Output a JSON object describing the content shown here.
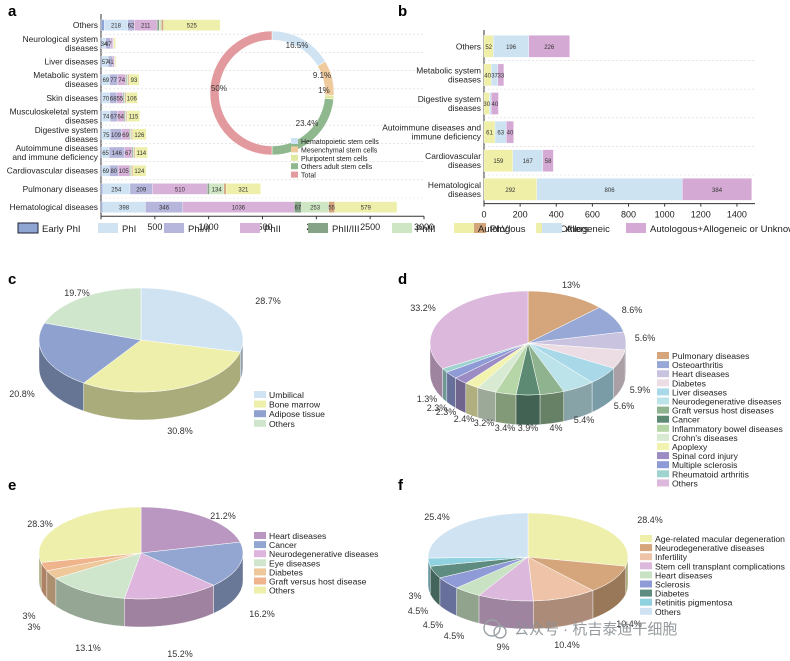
{
  "colors": {
    "early_phi": "#8fa6d2",
    "phi": "#cfe3f3",
    "phi_ii": "#b6b6dc",
    "phii": "#d8b1d9",
    "phii_iii": "#86a388",
    "phiii": "#cfe6c4",
    "phvi": "#d4a47b",
    "others": "#eeefab",
    "autologous": "#efefa8",
    "allogeneic": "#cde3f2",
    "auto_allo": "#d4aad5"
  },
  "panel_a": {
    "letter": "a",
    "xticks": [
      "0",
      "500",
      "1000",
      "1500",
      "2000",
      "2500",
      "3000"
    ],
    "xmax": 3000,
    "categories": [
      "Others",
      "Neurological system diseases",
      "Liver diseases",
      "Metabolic system diseases",
      "Skin diseases",
      "Musculoskeletal system diseases",
      "Digestive system diseases",
      "Autoimmune diseases and immune deficiency",
      "Cardiovascular diseases",
      "Pulmonary diseases",
      "Hematological diseases"
    ],
    "category_lines": [
      [
        "Others"
      ],
      [
        "Neurological system",
        "diseases"
      ],
      [
        "Liver diseases"
      ],
      [
        "Metabolic system",
        "diseases"
      ],
      [
        "Skin diseases"
      ],
      [
        "Musculoskeletal system",
        "diseases"
      ],
      [
        "Digestive system",
        "diseases"
      ],
      [
        "Autoimmune diseases",
        "and immune deficiency"
      ],
      [
        "Cardiovascular diseases"
      ],
      [
        "Pulmonary diseases"
      ],
      [
        "Hematological diseases"
      ]
    ],
    "series": [
      {
        "key": "early_phi",
        "values": [
          30,
          10,
          10,
          10,
          10,
          10,
          10,
          10,
          10,
          15,
          15
        ]
      },
      {
        "key": "phi",
        "values": [
          218,
          34,
          57,
          69,
          70,
          74,
          75,
          65,
          69,
          254,
          398
        ]
      },
      {
        "key": "phi_ii",
        "values": [
          62,
          47,
          41,
          77,
          68,
          67,
          109,
          146,
          80,
          209,
          346
        ]
      },
      {
        "key": "phii",
        "values": [
          211,
          20,
          15,
          74,
          55,
          64,
          69,
          67,
          105,
          510,
          1036
        ]
      },
      {
        "key": "phii_iii",
        "values": [
          20,
          3,
          3,
          10,
          10,
          10,
          10,
          10,
          10,
          20,
          67
        ]
      },
      {
        "key": "phiii",
        "values": [
          20,
          3,
          3,
          10,
          10,
          10,
          10,
          10,
          10,
          134,
          253
        ]
      },
      {
        "key": "phvi",
        "values": [
          20,
          3,
          3,
          10,
          10,
          10,
          10,
          10,
          10,
          20,
          55
        ]
      },
      {
        "key": "others",
        "values": [
          525,
          15,
          10,
          93,
          106,
          115,
          126,
          114,
          124,
          321,
          579
        ]
      }
    ],
    "bar_labels": [
      [
        "218",
        "62",
        "211",
        "525"
      ],
      [
        "34",
        "47"
      ],
      [
        "57",
        "41"
      ],
      [
        "69",
        "77",
        "74",
        "93"
      ],
      [
        "70",
        "68",
        "55",
        "106"
      ],
      [
        "74",
        "67",
        "64",
        "115"
      ],
      [
        "75",
        "109",
        "69",
        "126"
      ],
      [
        "65",
        "146",
        "67",
        "114"
      ],
      [
        "69",
        "80",
        "105",
        "124"
      ],
      [
        "254",
        "209",
        "510",
        "134",
        "321"
      ],
      [
        "398",
        "346",
        "1036",
        "67",
        "253",
        "55",
        "579"
      ]
    ],
    "donut": {
      "slices": [
        {
          "name": "Hematopoietic stem cells",
          "value": 16.5,
          "color": "#cfe3f3",
          "label": "16.5%"
        },
        {
          "name": "Mesenchymal stem cells",
          "value": 9.1,
          "color": "#eeca9c",
          "label": "9.1%"
        },
        {
          "name": "Pluripotent stem cells",
          "value": 1,
          "color": "#dfeaa0",
          "label": "1%"
        },
        {
          "name": "Others adult stem cells",
          "value": 23.4,
          "color": "#8fb88f",
          "label": "23.4%"
        },
        {
          "name": "Total",
          "value": 50,
          "color": "#e39a9e",
          "label": "50%"
        }
      ]
    }
  },
  "legend_a": [
    {
      "key": "early_phi",
      "label": "Early PhI"
    },
    {
      "key": "phi",
      "label": "PhI"
    },
    {
      "key": "phi_ii",
      "label": "PhI/II"
    },
    {
      "key": "phii",
      "label": "PhII"
    },
    {
      "key": "phii_iii",
      "label": "PhII/III"
    },
    {
      "key": "phiii",
      "label": "PhIII"
    },
    {
      "key": "phvi",
      "label": "PhVI"
    },
    {
      "key": "others",
      "label": "Others"
    }
  ],
  "panel_b": {
    "letter": "b",
    "xticks": [
      "0",
      "200",
      "400",
      "600",
      "800",
      "1000",
      "1200",
      "1400"
    ],
    "xmax": 1500,
    "categories": [
      "Others",
      "Metabolic system diseases",
      "Digestive system diseases",
      "Autoimmune diseases and immune deficiency",
      "Cardiovascular diseases",
      "Hematological diseases"
    ],
    "category_lines": [
      [
        "Others"
      ],
      [
        "Metabolic system",
        "diseases"
      ],
      [
        "Digestive system",
        "diseases"
      ],
      [
        "Autoimmune diseases and",
        "immune deficiency"
      ],
      [
        "Cardiovascular",
        "diseases"
      ],
      [
        "Hematological",
        "diseases"
      ]
    ],
    "series": [
      {
        "key": "autologous",
        "values": [
          52,
          40,
          30,
          61,
          159,
          292
        ]
      },
      {
        "key": "allogeneic",
        "values": [
          196,
          37,
          10,
          63,
          167,
          806
        ]
      },
      {
        "key": "auto_allo",
        "values": [
          226,
          33,
          40,
          40,
          58,
          384
        ]
      }
    ],
    "bar_labels": [
      [
        "52",
        "196",
        "226"
      ],
      [
        "40",
        "37",
        "33"
      ],
      [
        "30",
        "40"
      ],
      [
        "61",
        "63",
        "40"
      ],
      [
        "159",
        "167",
        "58"
      ],
      [
        "292",
        "806",
        "384"
      ]
    ]
  },
  "legend_b": [
    {
      "key": "autologous",
      "label": "Autologous"
    },
    {
      "key": "allogeneic",
      "label": "Allogeneic"
    },
    {
      "key": "auto_allo",
      "label": "Autologous+Allogeneic or Unknown"
    }
  ],
  "chart_data": [
    {
      "type": "bar",
      "orientation": "horizontal",
      "stacked": true,
      "panel": "a",
      "title": "",
      "categories": [
        "Others",
        "Neurological system diseases",
        "Liver diseases",
        "Metabolic system diseases",
        "Skin diseases",
        "Musculoskeletal system diseases",
        "Digestive system diseases",
        "Autoimmune diseases and immune deficiency",
        "Cardiovascular diseases",
        "Pulmonary diseases",
        "Hematological diseases"
      ],
      "xlim": [
        0,
        3000
      ],
      "series": [
        {
          "name": "Early PhI",
          "values": [
            30,
            10,
            10,
            10,
            10,
            10,
            10,
            10,
            10,
            15,
            15
          ]
        },
        {
          "name": "PhI",
          "values": [
            218,
            34,
            57,
            69,
            70,
            74,
            75,
            65,
            69,
            254,
            398
          ]
        },
        {
          "name": "PhI/II",
          "values": [
            62,
            47,
            41,
            77,
            68,
            67,
            109,
            146,
            80,
            209,
            346
          ]
        },
        {
          "name": "PhII",
          "values": [
            211,
            20,
            15,
            74,
            55,
            64,
            69,
            67,
            105,
            510,
            1036
          ]
        },
        {
          "name": "PhII/III",
          "values": [
            20,
            3,
            3,
            10,
            10,
            10,
            10,
            10,
            10,
            20,
            67
          ]
        },
        {
          "name": "PhIII",
          "values": [
            20,
            3,
            3,
            10,
            10,
            10,
            10,
            10,
            10,
            134,
            253
          ]
        },
        {
          "name": "PhVI",
          "values": [
            20,
            3,
            3,
            10,
            10,
            10,
            10,
            10,
            10,
            20,
            55
          ]
        },
        {
          "name": "Others",
          "values": [
            525,
            15,
            10,
            93,
            106,
            115,
            126,
            114,
            124,
            321,
            579
          ]
        }
      ]
    },
    {
      "type": "pie",
      "donut": true,
      "panel": "a-inset",
      "categories": [
        "Hematopoietic stem cells",
        "Mesenchymal stem cells",
        "Pluripotent stem cells",
        "Others adult stem cells",
        "Total"
      ],
      "values": [
        16.5,
        9.1,
        1,
        23.4,
        50
      ]
    },
    {
      "type": "bar",
      "orientation": "horizontal",
      "stacked": true,
      "panel": "b",
      "categories": [
        "Others",
        "Metabolic system diseases",
        "Digestive system diseases",
        "Autoimmune diseases and immune deficiency",
        "Cardiovascular diseases",
        "Hematological diseases"
      ],
      "xlim": [
        0,
        1500
      ],
      "series": [
        {
          "name": "Autologous",
          "values": [
            52,
            40,
            30,
            61,
            159,
            292
          ]
        },
        {
          "name": "Allogeneic",
          "values": [
            196,
            37,
            10,
            63,
            167,
            806
          ]
        },
        {
          "name": "Autologous+Allogeneic or Unknown",
          "values": [
            226,
            33,
            40,
            40,
            58,
            384
          ]
        }
      ]
    },
    {
      "type": "pie",
      "panel": "c",
      "categories": [
        "Umbilical",
        "Bone marrow",
        "Adipose tissue",
        "Others"
      ],
      "values": [
        28.7,
        30.8,
        20.8,
        19.7
      ],
      "labels": [
        "28.7%",
        "30.8%",
        "20.8%",
        "19.7%"
      ],
      "colors": [
        "#cfe3f3",
        "#eeefab",
        "#8fa2cf",
        "#cfe6cd"
      ]
    },
    {
      "type": "pie",
      "panel": "d",
      "categories": [
        "Pulmonary diseases",
        "Osteoarthritis",
        "Heart diseases",
        "Diabetes",
        "Liver diseases",
        "Neurodegenerative diseases",
        "Graft versus host diseases",
        "Cancer",
        "Inflammatory bowel diseases",
        "Crohn's diseases",
        "Apoplexy",
        "Spinal cord injury",
        "Multiple sclerosis",
        "Rheumatoid arthritis",
        "Others"
      ],
      "values": [
        13,
        8.6,
        5.6,
        5.9,
        5.6,
        5.4,
        4,
        3.9,
        3.4,
        3.2,
        2.4,
        2.3,
        2.3,
        1.3,
        33.2
      ],
      "labels": [
        "13%",
        "8.6%",
        "5.6%",
        "5.9%",
        "5.6%",
        "5.4%",
        "4%",
        "3.9%",
        "3.4%",
        "3.2%",
        "2.4%",
        "2.3%",
        "2.3%",
        "1.3%",
        "33.2%"
      ],
      "colors": [
        "#d5a57c",
        "#98a8d6",
        "#c9c3e0",
        "#ecdde4",
        "#a9d8e8",
        "#bde3ea",
        "#8fb38f",
        "#5c8a73",
        "#b6d6a8",
        "#d9ead3",
        "#f3f3b0",
        "#9b8dc4",
        "#8e9bd6",
        "#9fd3d0",
        "#dcb8dd"
      ]
    },
    {
      "type": "pie",
      "panel": "e",
      "categories": [
        "Heart diseases",
        "Cancer",
        "Neurodegenerative diseases",
        "Eye diseases",
        "Diabetes",
        "Graft versus host disease",
        "Others"
      ],
      "values": [
        21.2,
        16.2,
        15.2,
        13.1,
        3,
        3,
        28.3
      ],
      "labels": [
        "21.2%",
        "16.2%",
        "15.2%",
        "13.1%",
        "3%",
        "3%",
        "28.3%"
      ],
      "colors": [
        "#b997c0",
        "#93a6d2",
        "#ddb5dd",
        "#cfe6cd",
        "#eec79a",
        "#f0b48c",
        "#eeefab"
      ]
    },
    {
      "type": "pie",
      "panel": "f",
      "categories": [
        "Age-related macular degeneration",
        "Neurodegenerative diseases",
        "Infertility",
        "Stem cell transplant complications",
        "Heart diseases",
        "Sclerosis",
        "Diabetes",
        "Retinitis pigmentosa",
        "Others"
      ],
      "values": [
        28.4,
        10.4,
        10.4,
        9,
        4.5,
        4.5,
        4.5,
        3,
        25.4
      ],
      "labels": [
        "28.4%",
        "10.4%",
        "10.4%",
        "9%",
        "4.5%",
        "4.5%",
        "4.5%",
        "3%",
        "25.4%"
      ],
      "colors": [
        "#eeefab",
        "#d5a57c",
        "#efc3a8",
        "#dcb8dd",
        "#c9e2c4",
        "#8e9bd6",
        "#5f8c80",
        "#8fd1df",
        "#cfe3f3"
      ]
    }
  ],
  "panel_c": {
    "letter": "c"
  },
  "panel_d": {
    "letter": "d"
  },
  "panel_e": {
    "letter": "e"
  },
  "panel_f": {
    "letter": "f"
  },
  "watermark": "公众号 · 杭吉泰迪干细胞"
}
